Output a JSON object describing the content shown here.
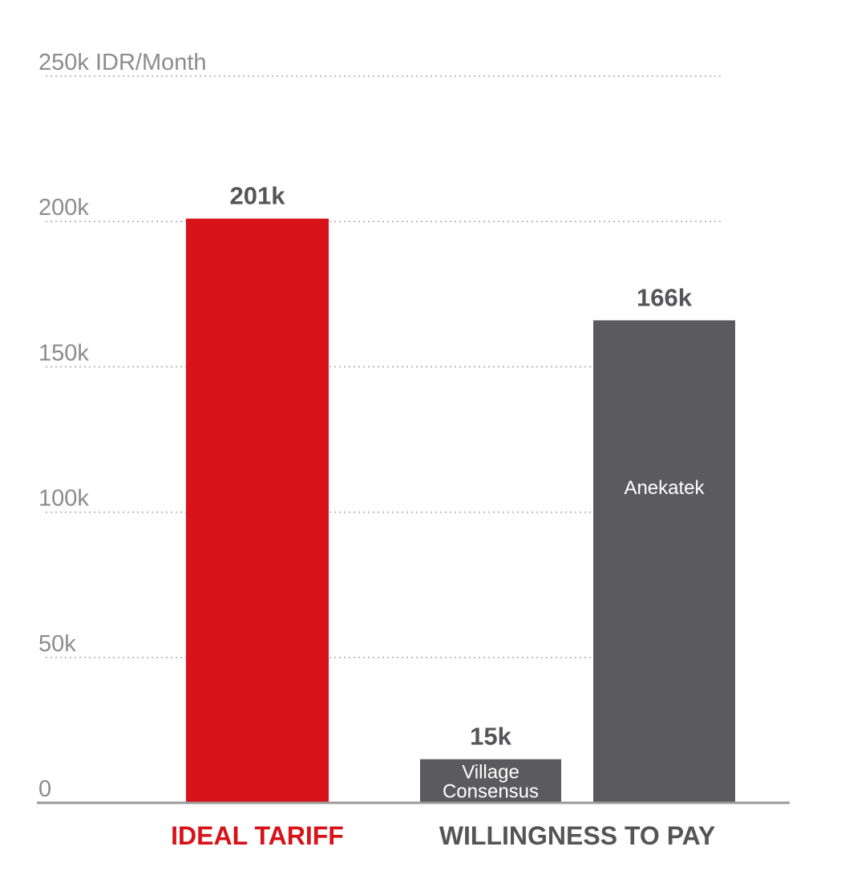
{
  "chart_data": {
    "type": "bar",
    "title": "",
    "ylabel": "IDR/Month",
    "ylim": [
      0,
      250
    ],
    "grid": true,
    "y_ticks": [
      {
        "value": 0,
        "label": "0"
      },
      {
        "value": 50,
        "label": "50k"
      },
      {
        "value": 100,
        "label": "100k"
      },
      {
        "value": 150,
        "label": "150k"
      },
      {
        "value": 200,
        "label": "200k"
      },
      {
        "value": 250,
        "label": "250k IDR/Month"
      }
    ],
    "groups": [
      {
        "name": "IDEAL TARIFF",
        "color": "#d71218"
      },
      {
        "name": "WILLINGNESS TO PAY",
        "color": "#555557"
      }
    ],
    "bars": [
      {
        "group": "IDEAL TARIFF",
        "series": "",
        "value": 201,
        "label": "201k",
        "color": "#d71218"
      },
      {
        "group": "WILLINGNESS TO PAY",
        "series": "Village Consensus",
        "value": 15,
        "label": "15k",
        "color": "#5b5b5d"
      },
      {
        "group": "WILLINGNESS TO PAY",
        "series": "Anekatek",
        "value": 166,
        "label": "166k",
        "color": "#5b5b5d"
      }
    ]
  }
}
